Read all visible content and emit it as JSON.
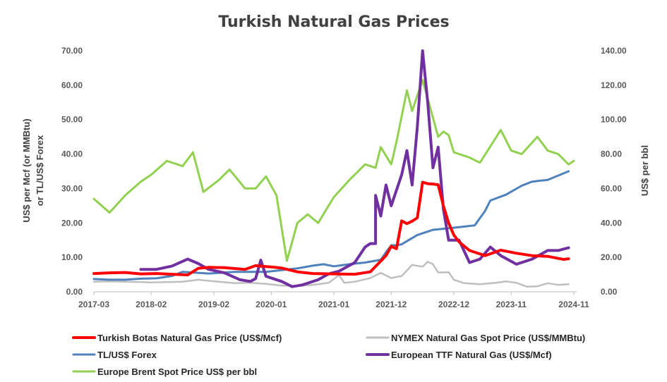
{
  "chart_data": {
    "type": "line",
    "title": "Turkish Natural Gas Prices",
    "ylabel_left": "US$ per Mcf (or MMBtu) or TL/US$ Forex",
    "ylabel_left_lines": [
      "US$ per Mcf (or MMBtu)",
      "or TL/US$ Forex"
    ],
    "ylabel_right": "US$ per bbl",
    "ylim_left": [
      0,
      70
    ],
    "ylim_right": [
      0,
      140
    ],
    "yticks_left": [
      "0.00",
      "10.00",
      "20.00",
      "30.00",
      "40.00",
      "50.00",
      "60.00",
      "70.00"
    ],
    "yticks_right": [
      "0.00",
      "20.00",
      "40.00",
      "60.00",
      "80.00",
      "100.00",
      "120.00",
      "140.00"
    ],
    "xlim": [
      "2017-03",
      "2024-11"
    ],
    "xticks": [
      "2017-03",
      "2018-02",
      "2019-02",
      "2020-01",
      "2021-01",
      "2021-12",
      "2022-12",
      "2023-11",
      "2024-11"
    ],
    "grid": "none",
    "legend_placement": "bottom",
    "series": [
      {
        "name": "Turkish Botas Natural Gas Price (US$/Mcf)",
        "axis": "left",
        "color": "#ff0000",
        "width": 4,
        "points": [
          [
            "2017-03",
            5.3
          ],
          [
            "2017-06",
            5.5
          ],
          [
            "2017-09",
            5.6
          ],
          [
            "2017-12",
            5.2
          ],
          [
            "2018-03",
            5.3
          ],
          [
            "2018-06",
            5.1
          ],
          [
            "2018-09",
            4.9
          ],
          [
            "2018-11",
            6.8
          ],
          [
            "2019-01",
            7.1
          ],
          [
            "2019-04",
            7.0
          ],
          [
            "2019-08",
            6.5
          ],
          [
            "2019-10",
            7.6
          ],
          [
            "2020-01",
            7.2
          ],
          [
            "2020-03",
            6.9
          ],
          [
            "2020-06",
            5.8
          ],
          [
            "2020-09",
            5.3
          ],
          [
            "2021-01",
            5.2
          ],
          [
            "2021-05",
            5.1
          ],
          [
            "2021-08",
            5.8
          ],
          [
            "2021-11",
            10.5
          ],
          [
            "2021-12",
            13.2
          ],
          [
            "2022-01",
            12.5
          ],
          [
            "2022-02",
            20.6
          ],
          [
            "2022-03",
            19.8
          ],
          [
            "2022-04",
            20.5
          ],
          [
            "2022-05",
            21.5
          ],
          [
            "2022-06",
            31.8
          ],
          [
            "2022-07",
            31.4
          ],
          [
            "2022-08",
            31.3
          ],
          [
            "2022-09",
            31.1
          ],
          [
            "2022-10",
            25.0
          ],
          [
            "2022-11",
            20.0
          ],
          [
            "2022-12",
            16.5
          ],
          [
            "2023-01",
            14.5
          ],
          [
            "2023-03",
            12.0
          ],
          [
            "2023-06",
            10.5
          ],
          [
            "2023-09",
            12.1
          ],
          [
            "2023-12",
            11.2
          ],
          [
            "2024-03",
            10.5
          ],
          [
            "2024-06",
            10.3
          ],
          [
            "2024-09",
            9.4
          ],
          [
            "2024-10",
            9.6
          ]
        ]
      },
      {
        "name": "NYMEX Natural Gas Spot Price (US$/MMBtu)",
        "axis": "left",
        "color": "#bfbfbf",
        "width": 2.5,
        "points": [
          [
            "2017-03",
            2.9
          ],
          [
            "2017-06",
            3.0
          ],
          [
            "2017-09",
            2.9
          ],
          [
            "2017-12",
            2.8
          ],
          [
            "2018-02",
            2.7
          ],
          [
            "2018-05",
            2.8
          ],
          [
            "2018-08",
            2.9
          ],
          [
            "2018-11",
            3.5
          ],
          [
            "2019-01",
            3.2
          ],
          [
            "2019-03",
            2.9
          ],
          [
            "2019-06",
            2.5
          ],
          [
            "2019-09",
            2.6
          ],
          [
            "2019-12",
            2.3
          ],
          [
            "2020-03",
            1.8
          ],
          [
            "2020-06",
            1.7
          ],
          [
            "2020-09",
            2.0
          ],
          [
            "2020-12",
            2.6
          ],
          [
            "2021-02",
            4.8
          ],
          [
            "2021-03",
            2.6
          ],
          [
            "2021-05",
            2.9
          ],
          [
            "2021-08",
            4.0
          ],
          [
            "2021-10",
            5.5
          ],
          [
            "2021-12",
            4.0
          ],
          [
            "2022-02",
            4.6
          ],
          [
            "2022-04",
            7.8
          ],
          [
            "2022-06",
            7.3
          ],
          [
            "2022-07",
            8.7
          ],
          [
            "2022-08",
            8.0
          ],
          [
            "2022-09",
            5.6
          ],
          [
            "2022-11",
            5.7
          ],
          [
            "2022-12",
            3.5
          ],
          [
            "2023-02",
            2.5
          ],
          [
            "2023-05",
            2.2
          ],
          [
            "2023-08",
            2.6
          ],
          [
            "2023-10",
            3.0
          ],
          [
            "2023-12",
            2.6
          ],
          [
            "2024-02",
            1.5
          ],
          [
            "2024-04",
            1.6
          ],
          [
            "2024-06",
            2.5
          ],
          [
            "2024-08",
            2.0
          ],
          [
            "2024-10",
            2.2
          ]
        ]
      },
      {
        "name": "TL/US$ Forex",
        "axis": "left",
        "color": "#4f81bd",
        "width": 3,
        "points": [
          [
            "2017-03",
            3.7
          ],
          [
            "2017-06",
            3.5
          ],
          [
            "2017-09",
            3.5
          ],
          [
            "2017-12",
            3.8
          ],
          [
            "2018-03",
            3.9
          ],
          [
            "2018-06",
            4.6
          ],
          [
            "2018-08",
            5.8
          ],
          [
            "2018-10",
            5.6
          ],
          [
            "2019-01",
            5.3
          ],
          [
            "2019-06",
            5.8
          ],
          [
            "2019-12",
            5.8
          ],
          [
            "2020-03",
            6.3
          ],
          [
            "2020-06",
            6.8
          ],
          [
            "2020-09",
            7.6
          ],
          [
            "2020-11",
            8.0
          ],
          [
            "2021-01",
            7.4
          ],
          [
            "2021-04",
            8.0
          ],
          [
            "2021-07",
            8.5
          ],
          [
            "2021-10",
            9.3
          ],
          [
            "2021-11",
            11.5
          ],
          [
            "2021-12",
            13.5
          ],
          [
            "2022-01",
            13.5
          ],
          [
            "2022-02",
            13.8
          ],
          [
            "2022-05",
            16.5
          ],
          [
            "2022-08",
            18.0
          ],
          [
            "2022-12",
            18.6
          ],
          [
            "2023-04",
            19.3
          ],
          [
            "2023-06",
            23.5
          ],
          [
            "2023-07",
            26.5
          ],
          [
            "2023-10",
            28.2
          ],
          [
            "2024-01",
            30.8
          ],
          [
            "2024-03",
            32.0
          ],
          [
            "2024-06",
            32.5
          ],
          [
            "2024-10",
            35.0
          ]
        ]
      },
      {
        "name": "European TTF Natural Gas (US$/Mcf)",
        "axis": "left",
        "color": "#7030a0",
        "width": 4,
        "points": [
          [
            "2017-12",
            6.5
          ],
          [
            "2018-03",
            6.5
          ],
          [
            "2018-06",
            7.5
          ],
          [
            "2018-09",
            9.5
          ],
          [
            "2018-11",
            8.2
          ],
          [
            "2019-01",
            6.5
          ],
          [
            "2019-04",
            5.5
          ],
          [
            "2019-07",
            3.5
          ],
          [
            "2019-09",
            3.0
          ],
          [
            "2019-10",
            3.8
          ],
          [
            "2019-11",
            9.2
          ],
          [
            "2019-12",
            4.5
          ],
          [
            "2020-03",
            3.0
          ],
          [
            "2020-05",
            1.5
          ],
          [
            "2020-07",
            2.0
          ],
          [
            "2020-10",
            3.5
          ],
          [
            "2020-12",
            5.2
          ],
          [
            "2021-02",
            6.0
          ],
          [
            "2021-05",
            8.5
          ],
          [
            "2021-07",
            13.0
          ],
          [
            "2021-08",
            14.0
          ],
          [
            "2021-09",
            14.0
          ],
          [
            "2021-09",
            28.0
          ],
          [
            "2021-10",
            22.0
          ],
          [
            "2021-11",
            31.0
          ],
          [
            "2021-12",
            25.0
          ],
          [
            "2022-02",
            34.0
          ],
          [
            "2022-03",
            41.0
          ],
          [
            "2022-04",
            31.0
          ],
          [
            "2022-05",
            48.0
          ],
          [
            "2022-06",
            70.0
          ],
          [
            "2022-07",
            55.0
          ],
          [
            "2022-08",
            36.0
          ],
          [
            "2022-09",
            42.0
          ],
          [
            "2022-10",
            24.0
          ],
          [
            "2022-11",
            15.0
          ],
          [
            "2023-01",
            15.0
          ],
          [
            "2023-03",
            8.5
          ],
          [
            "2023-05",
            9.5
          ],
          [
            "2023-07",
            13.0
          ],
          [
            "2023-09",
            10.5
          ],
          [
            "2023-12",
            8.0
          ],
          [
            "2024-03",
            9.5
          ],
          [
            "2024-06",
            12.0
          ],
          [
            "2024-08",
            12.0
          ],
          [
            "2024-10",
            12.8
          ]
        ]
      },
      {
        "name": "Europe Brent Spot Price US$ per bbl",
        "axis": "right",
        "color": "#92d050",
        "width": 3,
        "points": [
          [
            "2017-03",
            54
          ],
          [
            "2017-06",
            46
          ],
          [
            "2017-09",
            56
          ],
          [
            "2017-12",
            64
          ],
          [
            "2018-02",
            68
          ],
          [
            "2018-05",
            76
          ],
          [
            "2018-08",
            73
          ],
          [
            "2018-10",
            81
          ],
          [
            "2018-12",
            58
          ],
          [
            "2019-03",
            65
          ],
          [
            "2019-05",
            71
          ],
          [
            "2019-08",
            60
          ],
          [
            "2019-10",
            60
          ],
          [
            "2019-12",
            67
          ],
          [
            "2020-02",
            56
          ],
          [
            "2020-04",
            18
          ],
          [
            "2020-06",
            40
          ],
          [
            "2020-08",
            45
          ],
          [
            "2020-10",
            40
          ],
          [
            "2021-01",
            55
          ],
          [
            "2021-04",
            65
          ],
          [
            "2021-07",
            74
          ],
          [
            "2021-09",
            72
          ],
          [
            "2021-10",
            84
          ],
          [
            "2021-12",
            74
          ],
          [
            "2022-01",
            87
          ],
          [
            "2022-03",
            117
          ],
          [
            "2022-04",
            105
          ],
          [
            "2022-06",
            123
          ],
          [
            "2022-09",
            90
          ],
          [
            "2022-10",
            93
          ],
          [
            "2022-11",
            91
          ],
          [
            "2022-12",
            81
          ],
          [
            "2023-03",
            78
          ],
          [
            "2023-05",
            75
          ],
          [
            "2023-09",
            94
          ],
          [
            "2023-11",
            82
          ],
          [
            "2024-01",
            80
          ],
          [
            "2024-04",
            90
          ],
          [
            "2024-06",
            82
          ],
          [
            "2024-08",
            80
          ],
          [
            "2024-10",
            74
          ],
          [
            "2024-11",
            76
          ]
        ]
      }
    ]
  }
}
